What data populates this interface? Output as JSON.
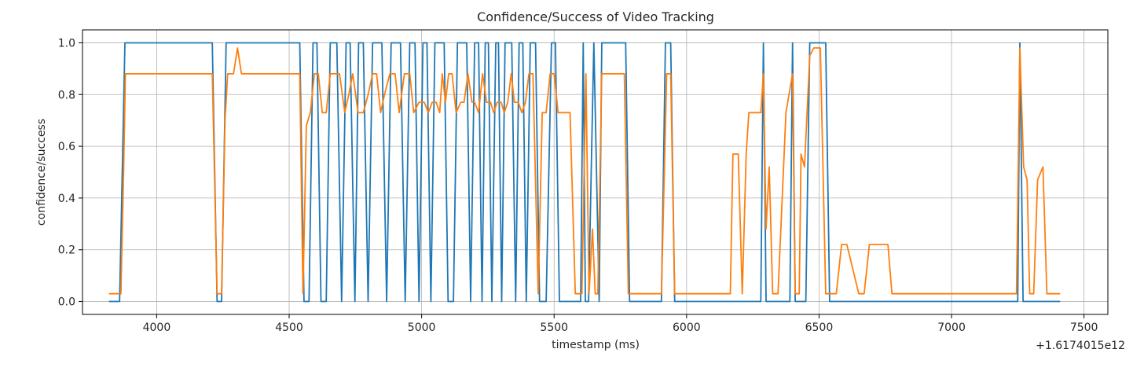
{
  "chart_data": {
    "type": "line",
    "title": "Confidence/Success of Video Tracking",
    "xlabel": "timestamp (ms)",
    "ylabel": "confidence/success",
    "x_offset_label": "+1.6174015e12",
    "xlim": [
      3720,
      7590
    ],
    "ylim": [
      -0.05,
      1.05
    ],
    "xticks": [
      4000,
      4500,
      5000,
      5500,
      6000,
      6500,
      7000,
      7500
    ],
    "xtick_labels": [
      "4000",
      "4500",
      "5000",
      "5500",
      "6000",
      "6500",
      "7000",
      "7500"
    ],
    "yticks": [
      0.0,
      0.2,
      0.4,
      0.6,
      0.8,
      1.0
    ],
    "ytick_labels": [
      "0.0",
      "0.2",
      "0.4",
      "0.6",
      "0.8",
      "1.0"
    ],
    "grid": true,
    "series": [
      {
        "color": "#1f77b4",
        "points": [
          [
            3820,
            0
          ],
          [
            3860,
            0
          ],
          [
            3880,
            1
          ],
          [
            4210,
            1
          ],
          [
            4228,
            0
          ],
          [
            4245,
            0
          ],
          [
            4262,
            1
          ],
          [
            4540,
            1
          ],
          [
            4556,
            0
          ],
          [
            4575,
            0
          ],
          [
            4590,
            1
          ],
          [
            4605,
            1
          ],
          [
            4620,
            0
          ],
          [
            4640,
            0
          ],
          [
            4655,
            1
          ],
          [
            4680,
            1
          ],
          [
            4698,
            0
          ],
          [
            4715,
            1
          ],
          [
            4730,
            1
          ],
          [
            4748,
            0
          ],
          [
            4762,
            1
          ],
          [
            4780,
            1
          ],
          [
            4798,
            0
          ],
          [
            4815,
            1
          ],
          [
            4850,
            1
          ],
          [
            4868,
            0
          ],
          [
            4885,
            1
          ],
          [
            4920,
            1
          ],
          [
            4938,
            0
          ],
          [
            4955,
            1
          ],
          [
            4975,
            1
          ],
          [
            4990,
            0
          ],
          [
            5005,
            1
          ],
          [
            5020,
            1
          ],
          [
            5035,
            0
          ],
          [
            5050,
            1
          ],
          [
            5085,
            1
          ],
          [
            5100,
            0
          ],
          [
            5120,
            0
          ],
          [
            5135,
            1
          ],
          [
            5170,
            1
          ],
          [
            5185,
            0
          ],
          [
            5200,
            1
          ],
          [
            5215,
            1
          ],
          [
            5228,
            0
          ],
          [
            5240,
            1
          ],
          [
            5252,
            1
          ],
          [
            5265,
            0
          ],
          [
            5280,
            1
          ],
          [
            5290,
            1
          ],
          [
            5302,
            0
          ],
          [
            5315,
            1
          ],
          [
            5340,
            1
          ],
          [
            5355,
            0
          ],
          [
            5368,
            1
          ],
          [
            5382,
            1
          ],
          [
            5395,
            0
          ],
          [
            5410,
            1
          ],
          [
            5430,
            1
          ],
          [
            5445,
            0
          ],
          [
            5470,
            0
          ],
          [
            5490,
            1
          ],
          [
            5505,
            1
          ],
          [
            5520,
            0
          ],
          [
            5600,
            0
          ],
          [
            5610,
            1
          ],
          [
            5618,
            0
          ],
          [
            5630,
            0
          ],
          [
            5650,
            1
          ],
          [
            5670,
            0
          ],
          [
            5680,
            1
          ],
          [
            5770,
            1
          ],
          [
            5785,
            0
          ],
          [
            5905,
            0
          ],
          [
            5920,
            1
          ],
          [
            5940,
            1
          ],
          [
            5955,
            0
          ],
          [
            6280,
            0
          ],
          [
            6290,
            1
          ],
          [
            6300,
            0
          ],
          [
            6390,
            0
          ],
          [
            6400,
            1
          ],
          [
            6410,
            0
          ],
          [
            6450,
            0
          ],
          [
            6465,
            1
          ],
          [
            6525,
            1
          ],
          [
            6540,
            0
          ],
          [
            7250,
            0
          ],
          [
            7258,
            1
          ],
          [
            7270,
            0
          ],
          [
            7410,
            0
          ]
        ]
      },
      {
        "color": "#ff7f0e",
        "points": [
          [
            3820,
            0.03
          ],
          [
            3865,
            0.03
          ],
          [
            3875,
            0.5
          ],
          [
            3882,
            0.88
          ],
          [
            4210,
            0.88
          ],
          [
            4228,
            0.03
          ],
          [
            4245,
            0.03
          ],
          [
            4258,
            0.7
          ],
          [
            4268,
            0.88
          ],
          [
            4290,
            0.88
          ],
          [
            4305,
            0.98
          ],
          [
            4320,
            0.88
          ],
          [
            4540,
            0.88
          ],
          [
            4552,
            0.03
          ],
          [
            4565,
            0.68
          ],
          [
            4580,
            0.73
          ],
          [
            4595,
            0.88
          ],
          [
            4610,
            0.88
          ],
          [
            4625,
            0.73
          ],
          [
            4640,
            0.73
          ],
          [
            4655,
            0.88
          ],
          [
            4690,
            0.88
          ],
          [
            4710,
            0.73
          ],
          [
            4725,
            0.8
          ],
          [
            4740,
            0.88
          ],
          [
            4760,
            0.73
          ],
          [
            4780,
            0.73
          ],
          [
            4798,
            0.8
          ],
          [
            4815,
            0.88
          ],
          [
            4830,
            0.88
          ],
          [
            4845,
            0.73
          ],
          [
            4860,
            0.8
          ],
          [
            4880,
            0.88
          ],
          [
            4900,
            0.88
          ],
          [
            4915,
            0.73
          ],
          [
            4935,
            0.88
          ],
          [
            4955,
            0.88
          ],
          [
            4970,
            0.73
          ],
          [
            4990,
            0.77
          ],
          [
            5010,
            0.77
          ],
          [
            5025,
            0.73
          ],
          [
            5040,
            0.77
          ],
          [
            5055,
            0.77
          ],
          [
            5068,
            0.73
          ],
          [
            5078,
            0.88
          ],
          [
            5090,
            0.77
          ],
          [
            5102,
            0.88
          ],
          [
            5115,
            0.88
          ],
          [
            5130,
            0.73
          ],
          [
            5148,
            0.77
          ],
          [
            5160,
            0.77
          ],
          [
            5175,
            0.88
          ],
          [
            5190,
            0.77
          ],
          [
            5200,
            0.77
          ],
          [
            5215,
            0.73
          ],
          [
            5230,
            0.88
          ],
          [
            5245,
            0.77
          ],
          [
            5260,
            0.77
          ],
          [
            5272,
            0.73
          ],
          [
            5285,
            0.77
          ],
          [
            5300,
            0.77
          ],
          [
            5312,
            0.73
          ],
          [
            5325,
            0.77
          ],
          [
            5338,
            0.88
          ],
          [
            5350,
            0.77
          ],
          [
            5365,
            0.77
          ],
          [
            5378,
            0.73
          ],
          [
            5392,
            0.77
          ],
          [
            5405,
            0.88
          ],
          [
            5420,
            0.88
          ],
          [
            5440,
            0.03
          ],
          [
            5455,
            0.73
          ],
          [
            5470,
            0.73
          ],
          [
            5485,
            0.88
          ],
          [
            5500,
            0.88
          ],
          [
            5515,
            0.73
          ],
          [
            5545,
            0.73
          ],
          [
            5560,
            0.73
          ],
          [
            5580,
            0.03
          ],
          [
            5605,
            0.03
          ],
          [
            5620,
            0.88
          ],
          [
            5632,
            0.03
          ],
          [
            5645,
            0.28
          ],
          [
            5655,
            0.03
          ],
          [
            5665,
            0.03
          ],
          [
            5680,
            0.88
          ],
          [
            5765,
            0.88
          ],
          [
            5780,
            0.03
          ],
          [
            5905,
            0.03
          ],
          [
            5925,
            0.88
          ],
          [
            5940,
            0.88
          ],
          [
            5955,
            0.03
          ],
          [
            6165,
            0.03
          ],
          [
            6175,
            0.57
          ],
          [
            6195,
            0.57
          ],
          [
            6210,
            0.03
          ],
          [
            6225,
            0.57
          ],
          [
            6235,
            0.73
          ],
          [
            6280,
            0.73
          ],
          [
            6290,
            0.88
          ],
          [
            6300,
            0.28
          ],
          [
            6312,
            0.52
          ],
          [
            6325,
            0.03
          ],
          [
            6345,
            0.03
          ],
          [
            6375,
            0.73
          ],
          [
            6400,
            0.88
          ],
          [
            6410,
            0.03
          ],
          [
            6425,
            0.03
          ],
          [
            6432,
            0.57
          ],
          [
            6445,
            0.52
          ],
          [
            6465,
            0.95
          ],
          [
            6480,
            0.98
          ],
          [
            6505,
            0.98
          ],
          [
            6525,
            0.03
          ],
          [
            6565,
            0.03
          ],
          [
            6585,
            0.22
          ],
          [
            6605,
            0.22
          ],
          [
            6650,
            0.03
          ],
          [
            6670,
            0.03
          ],
          [
            6690,
            0.22
          ],
          [
            6760,
            0.22
          ],
          [
            6775,
            0.03
          ],
          [
            7245,
            0.03
          ],
          [
            7258,
            0.98
          ],
          [
            7272,
            0.52
          ],
          [
            7285,
            0.47
          ],
          [
            7295,
            0.03
          ],
          [
            7310,
            0.03
          ],
          [
            7325,
            0.47
          ],
          [
            7345,
            0.52
          ],
          [
            7360,
            0.03
          ],
          [
            7410,
            0.03
          ]
        ]
      }
    ]
  }
}
